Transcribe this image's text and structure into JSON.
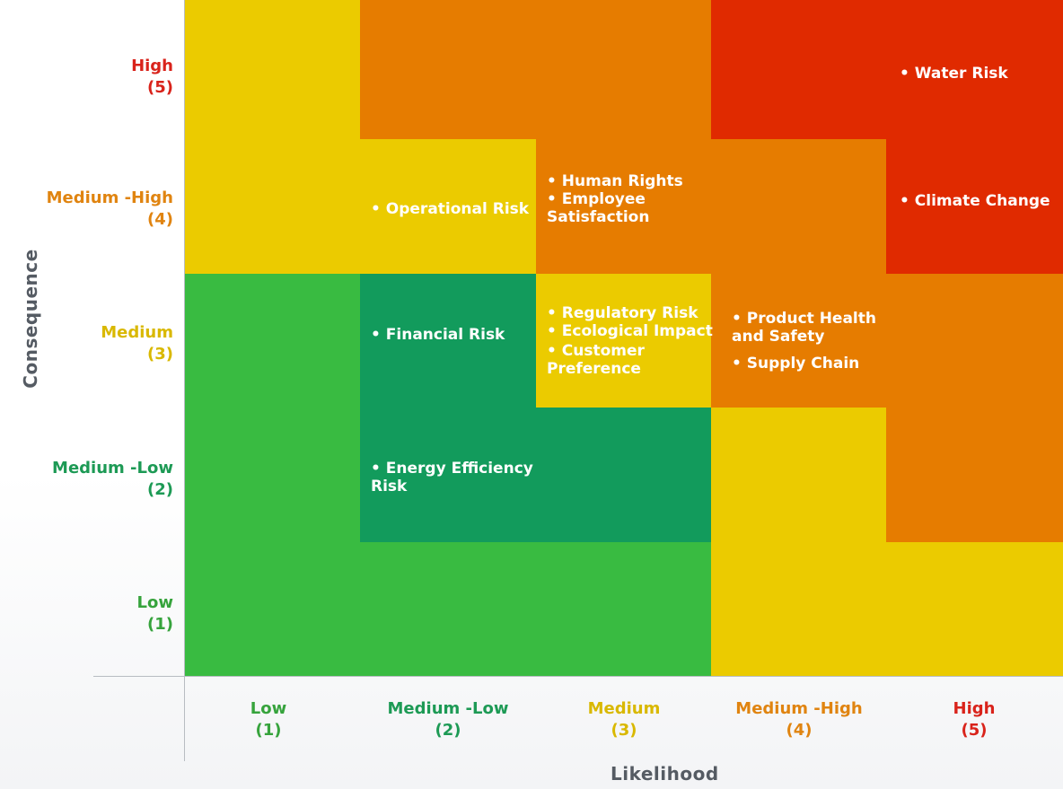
{
  "colors": {
    "green": "#39bb41",
    "dark_green": "#129b5c",
    "yellow": "#ebcb00",
    "orange": "#e67c00",
    "red": "#e02a00",
    "label_low": "#36a33c",
    "label_medium_low": "#1d9a55",
    "label_medium": "#d9b800",
    "label_medium_high": "#e08410",
    "label_high": "#d9231b"
  },
  "axes": {
    "y_title": "Consequence",
    "x_title": "Likelihood",
    "y_levels": [
      {
        "name": "High",
        "num": "(5)",
        "color": "label_high"
      },
      {
        "name": "Medium -High",
        "num": "(4)",
        "color": "label_medium_high"
      },
      {
        "name": "Medium",
        "num": "(3)",
        "color": "label_medium"
      },
      {
        "name": "Medium -Low",
        "num": "(2)",
        "color": "label_medium_low"
      },
      {
        "name": "Low",
        "num": "(1)",
        "color": "label_low"
      }
    ],
    "x_levels": [
      {
        "name": "Low",
        "num": "(1)",
        "color": "label_low"
      },
      {
        "name": "Medium -Low",
        "num": "(2)",
        "color": "label_medium_low"
      },
      {
        "name": "Medium",
        "num": "(3)",
        "color": "label_medium"
      },
      {
        "name": "Medium -High",
        "num": "(4)",
        "color": "label_medium_high"
      },
      {
        "name": "High",
        "num": "(5)",
        "color": "label_high"
      }
    ]
  },
  "matrix": [
    [
      "yellow",
      "orange",
      "orange",
      "red",
      "red"
    ],
    [
      "yellow",
      "yellow",
      "orange",
      "orange",
      "red"
    ],
    [
      "green",
      "dark_green",
      "yellow",
      "orange",
      "orange"
    ],
    [
      "green",
      "dark_green",
      "dark_green",
      "yellow",
      "orange"
    ],
    [
      "green",
      "green",
      "green",
      "yellow",
      "yellow"
    ]
  ],
  "risks": {
    "water_risk": "• Water Risk",
    "climate_change": "• Climate Change",
    "operational_risk": "• Operational Risk",
    "human_rights": "• Human Rights",
    "employee_satisfaction": "• Employee\nSatisfaction",
    "financial_risk": "• Financial Risk",
    "regulatory_risk": "• Regulatory Risk",
    "ecological_impact": "• Ecological Impact",
    "customer_preference": "• Customer\nPreference",
    "product_health_safety": "• Product Health\nand Safety",
    "supply_chain": "• Supply Chain",
    "energy_efficiency_risk": "• Energy Efficiency\nRisk"
  }
}
